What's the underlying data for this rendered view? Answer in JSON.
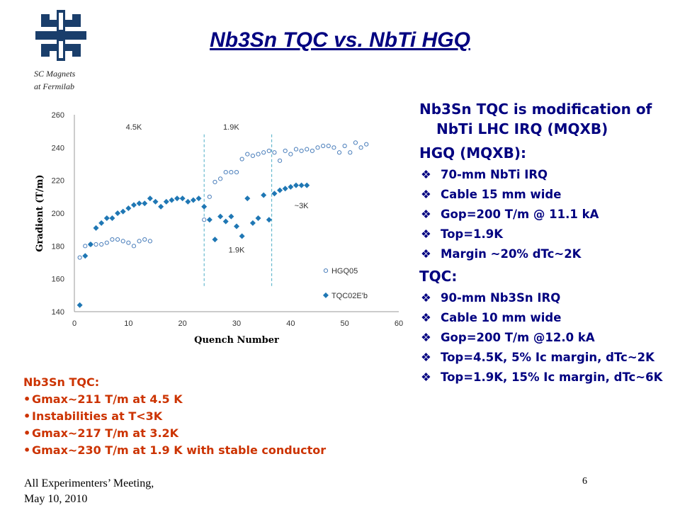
{
  "header": {
    "title": "Nb3Sn TQC vs. NbTi HGQ",
    "org_line1": "SC Magnets",
    "org_line2": "at Fermilab"
  },
  "chart_data": {
    "type": "scatter",
    "xlabel": "Quench Number",
    "ylabel": "Gradient (T/m)",
    "xlim": [
      0,
      60
    ],
    "ylim": [
      140,
      260
    ],
    "xticks": [
      0,
      10,
      20,
      30,
      40,
      50,
      60
    ],
    "yticks": [
      140,
      160,
      180,
      200,
      220,
      240,
      260
    ],
    "grid": false,
    "legend_position": "bottom-right",
    "annotations": [
      {
        "text": "4.5K",
        "x": 11,
        "y": 251
      },
      {
        "text": "1.9K",
        "x": 29,
        "y": 251
      },
      {
        "text": "~3K",
        "x": 42,
        "y": 203
      },
      {
        "text": "1.9K",
        "x": 30,
        "y": 176
      }
    ],
    "vlines": [
      24,
      36.5
    ],
    "series": [
      {
        "name": "HGQ05",
        "marker": "open-circle",
        "color": "#4a7ebb",
        "x": [
          1,
          2,
          3,
          4,
          5,
          6,
          7,
          8,
          9,
          10,
          11,
          12,
          13,
          14,
          24,
          25,
          26,
          27,
          28,
          29,
          30,
          31,
          32,
          33,
          34,
          35,
          36,
          37,
          38,
          39,
          40,
          41,
          42,
          43,
          44,
          45,
          46,
          47,
          48,
          49,
          50,
          51,
          52,
          53,
          54
        ],
        "y": [
          173,
          180,
          181,
          181,
          181,
          182,
          184,
          184,
          183,
          182,
          180,
          183,
          184,
          183,
          196,
          210,
          219,
          221,
          225,
          225,
          225,
          233,
          236,
          235,
          236,
          237,
          238,
          237,
          232,
          238,
          236,
          239,
          238,
          239,
          238,
          240,
          241,
          241,
          240,
          237,
          241,
          237,
          243,
          240,
          242
        ]
      },
      {
        "name": "TQC02E'b",
        "marker": "diamond",
        "color": "#1f77b4",
        "x": [
          1,
          2,
          3,
          4,
          5,
          6,
          7,
          8,
          9,
          10,
          11,
          12,
          13,
          14,
          15,
          16,
          17,
          18,
          19,
          20,
          21,
          22,
          23,
          24,
          25,
          26,
          27,
          28,
          29,
          30,
          31,
          32,
          33,
          34,
          35,
          36,
          37,
          38,
          39,
          40,
          41,
          42,
          43
        ],
        "y": [
          144,
          174,
          181,
          191,
          194,
          197,
          197,
          200,
          201,
          203,
          205,
          206,
          206,
          209,
          207,
          204,
          207,
          208,
          209,
          209,
          207,
          208,
          209,
          204,
          196,
          184,
          198,
          195,
          198,
          192,
          186,
          209,
          194,
          197,
          211,
          196,
          212,
          214,
          215,
          216,
          217,
          217,
          217
        ]
      }
    ]
  },
  "right_panel": {
    "line1": "Nb3Sn TQC is modification of NbTi LHC IRQ (MQXB)",
    "hgq_heading": "HGQ (MQXB):",
    "hgq_items": [
      "70-mm NbTi IRQ",
      "Cable 15 mm wide",
      "Gop=200 T/m @ 11.1 kA",
      "Top=1.9K",
      "Margin ~20% dTc~2K"
    ],
    "tqc_heading": "TQC:",
    "tqc_items": [
      "90-mm Nb3Sn IRQ",
      "Cable 10 mm wide",
      "Gop=200 T/m @12.0 kA",
      "Top=4.5K, 5% Ic margin, dTc~2K",
      "Top=1.9K, 15% Ic margin, dTc~6K"
    ],
    "bullet_icon": "diamond-bullet-icon"
  },
  "bottom_left": {
    "heading": "Nb3Sn TQC:",
    "items": [
      "Gmax~211 T/m at 4.5 K",
      "Instabilities at T<3K",
      "Gmax~217 T/m at 3.2K",
      "Gmax~230 T/m at 1.9 K with stable conductor"
    ]
  },
  "footer": {
    "line1": "All Experimenters’ Meeting,",
    "line2": "May 10, 2010",
    "page_number": "6"
  },
  "colors": {
    "title": "#000080",
    "text_right": "#000080",
    "text_bottom": "#cc3300",
    "series_hgq": "#4a7ebb",
    "series_tqc": "#1f77b4",
    "logo": "#1a3e6b"
  }
}
